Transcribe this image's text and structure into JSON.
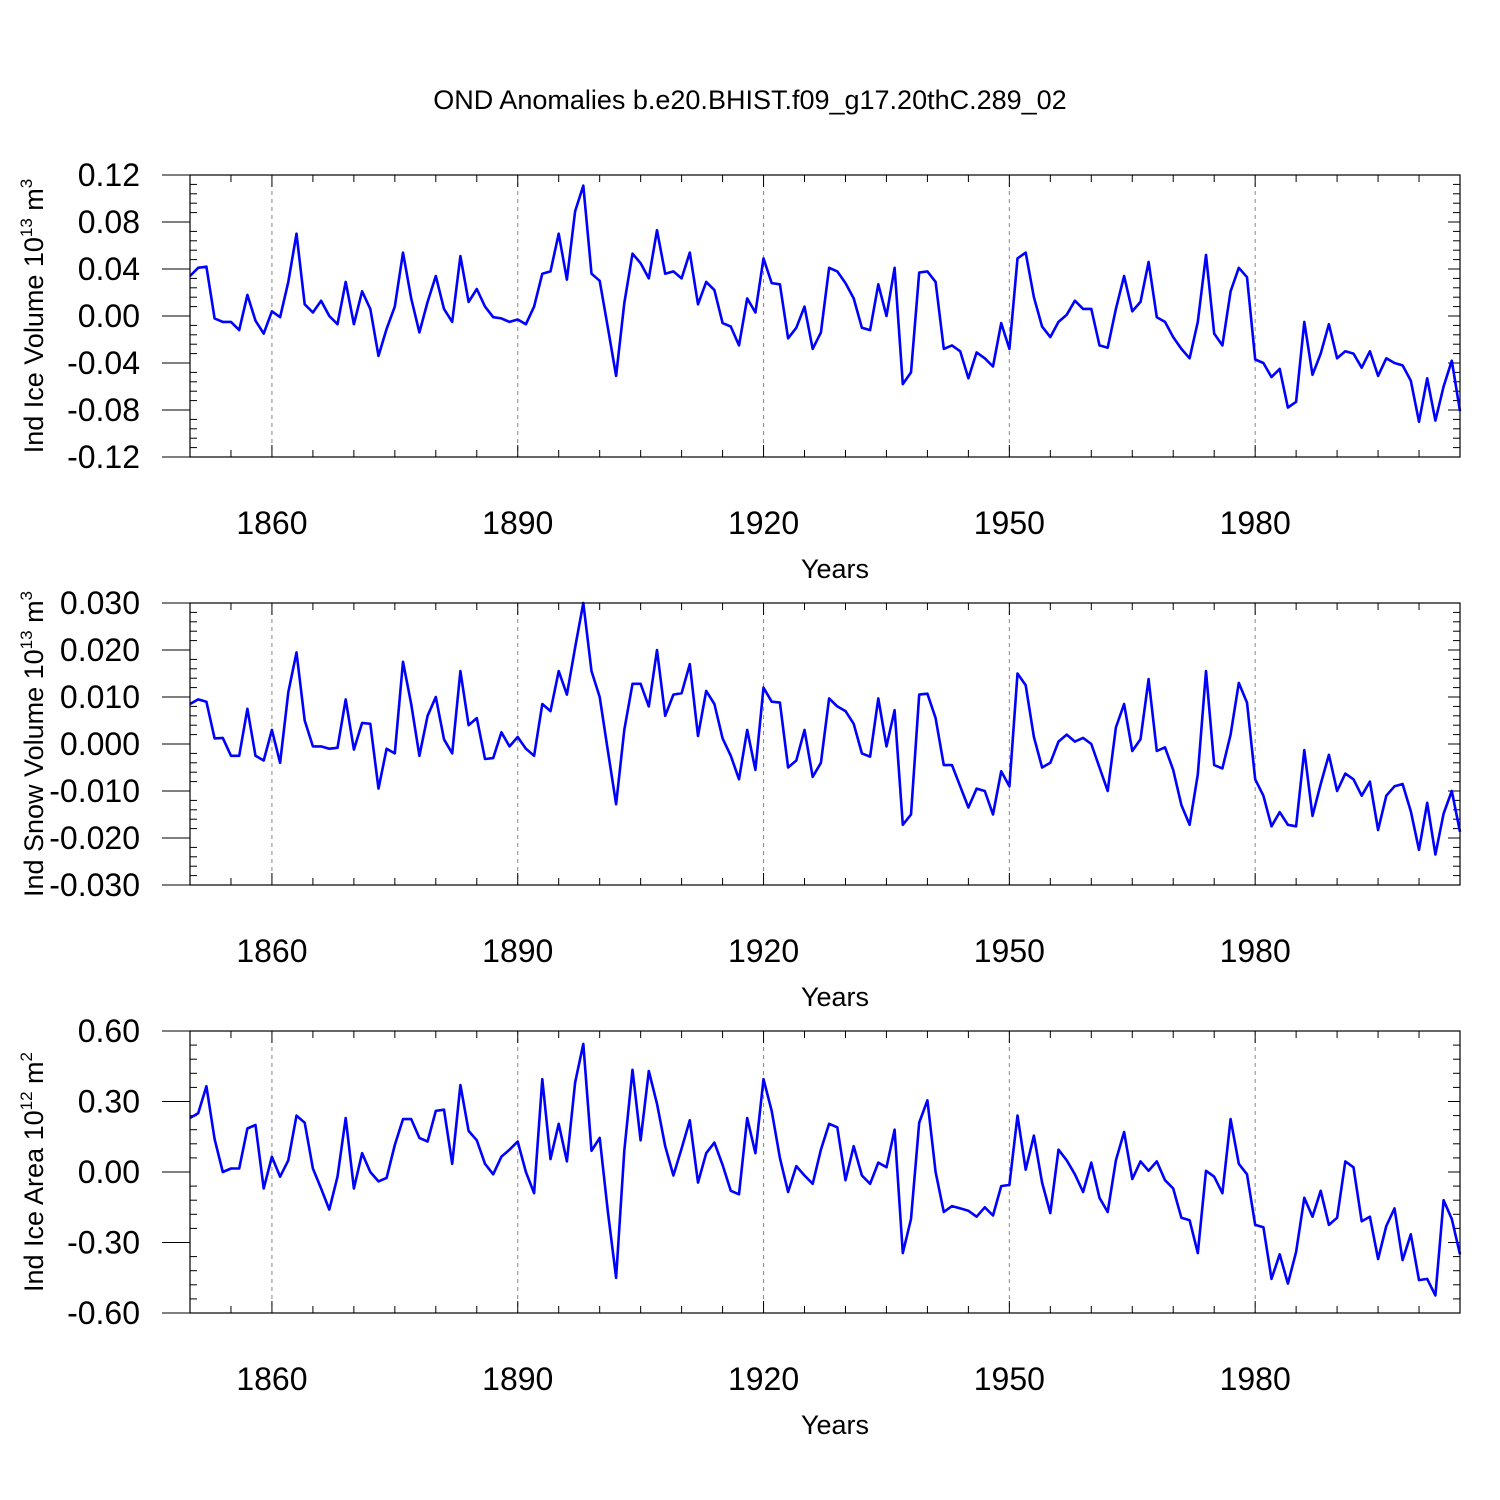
{
  "title": "OND Anomalies b.e20.BHIST.f09_g17.20thC.289_02",
  "colors": {
    "line": "#0000ff",
    "axis": "#000000",
    "grid": "#888888"
  },
  "chart_data": [
    {
      "type": "line",
      "ylabel": {
        "text": "Ind Ice Volume 10",
        "sup": "13",
        "unit": " m",
        "unit_sup": "3"
      },
      "xlabel": "Years",
      "xlim": [
        1850,
        2005
      ],
      "ylim": [
        -0.12,
        0.12
      ],
      "xticks": [
        1860,
        1890,
        1920,
        1950,
        1980
      ],
      "xtick_labels": [
        "1860",
        "1890",
        "1920",
        "1950",
        "1980"
      ],
      "yticks": [
        -0.12,
        -0.08,
        -0.04,
        0.0,
        0.04,
        0.08,
        0.12
      ],
      "ytick_labels": [
        "-0.12",
        "-0.08",
        "-0.04",
        "0.00",
        "0.04",
        "0.08",
        "0.12"
      ],
      "grid": "dashed vertical at major x ticks",
      "x_start": 1850,
      "series": [
        {
          "values": [
            0.034,
            0.041,
            0.042,
            -0.002,
            -0.005,
            -0.005,
            -0.012,
            0.018,
            -0.004,
            -0.015,
            0.004,
            -0.001,
            0.029,
            0.07,
            0.01,
            0.003,
            0.013,
            0.0,
            -0.007,
            0.029,
            -0.007,
            0.021,
            0.006,
            -0.034,
            -0.011,
            0.008,
            0.054,
            0.015,
            -0.014,
            0.012,
            0.034,
            0.006,
            -0.005,
            0.051,
            0.012,
            0.023,
            0.008,
            -0.001,
            -0.002,
            -0.005,
            -0.003,
            -0.007,
            0.008,
            0.036,
            0.038,
            0.07,
            0.031,
            0.089,
            0.111,
            0.036,
            0.03,
            -0.01,
            -0.051,
            0.011,
            0.053,
            0.045,
            0.032,
            0.073,
            0.036,
            0.038,
            0.032,
            0.054,
            0.01,
            0.029,
            0.022,
            -0.006,
            -0.009,
            -0.025,
            0.015,
            0.003,
            0.049,
            0.028,
            0.027,
            -0.019,
            -0.01,
            0.008,
            -0.028,
            -0.014,
            0.041,
            0.038,
            0.028,
            0.015,
            -0.01,
            -0.012,
            0.027,
            0.0,
            0.041,
            -0.058,
            -0.048,
            0.037,
            0.038,
            0.029,
            -0.028,
            -0.025,
            -0.03,
            -0.053,
            -0.031,
            -0.036,
            -0.043,
            -0.006,
            -0.028,
            0.049,
            0.054,
            0.016,
            -0.009,
            -0.018,
            -0.005,
            0.001,
            0.013,
            0.006,
            0.006,
            -0.025,
            -0.027,
            0.006,
            0.034,
            0.004,
            0.012,
            0.046,
            -0.001,
            -0.005,
            -0.018,
            -0.028,
            -0.036,
            -0.005,
            0.052,
            -0.015,
            -0.025,
            0.021,
            0.041,
            0.033,
            -0.037,
            -0.04,
            -0.052,
            -0.045,
            -0.078,
            -0.073,
            -0.005,
            -0.05,
            -0.032,
            -0.007,
            -0.036,
            -0.03,
            -0.032,
            -0.044,
            -0.03,
            -0.051,
            -0.036,
            -0.04,
            -0.042,
            -0.055,
            -0.09,
            -0.053,
            -0.089,
            -0.06,
            -0.038,
            -0.081
          ]
        }
      ]
    },
    {
      "type": "line",
      "ylabel": {
        "text": "Ind Snow Volume 10",
        "sup": "13",
        "unit": " m",
        "unit_sup": "3"
      },
      "xlabel": "Years",
      "xlim": [
        1850,
        2005
      ],
      "ylim": [
        -0.03,
        0.03
      ],
      "xticks": [
        1860,
        1890,
        1920,
        1950,
        1980
      ],
      "xtick_labels": [
        "1860",
        "1890",
        "1920",
        "1950",
        "1980"
      ],
      "yticks": [
        -0.03,
        -0.02,
        -0.01,
        0.0,
        0.01,
        0.02,
        0.03
      ],
      "ytick_labels": [
        "-0.030",
        "-0.020",
        "-0.010",
        "0.000",
        "0.010",
        "0.020",
        "0.030"
      ],
      "grid": "dashed vertical at major x ticks",
      "x_start": 1850,
      "series": [
        {
          "values": [
            0.0085,
            0.0095,
            0.009,
            0.0012,
            0.0013,
            -0.0025,
            -0.0025,
            0.0075,
            -0.0025,
            -0.0035,
            0.003,
            -0.004,
            0.011,
            0.0195,
            0.005,
            -0.0005,
            -0.0005,
            -0.001,
            -0.0008,
            0.0095,
            -0.0012,
            0.0045,
            0.0043,
            -0.0095,
            -0.001,
            -0.002,
            0.0175,
            0.0085,
            -0.0025,
            0.006,
            0.01,
            0.001,
            -0.002,
            0.0155,
            0.004,
            0.0055,
            -0.0032,
            -0.003,
            0.0025,
            -0.0005,
            0.0015,
            -0.001,
            -0.0025,
            0.0085,
            0.007,
            0.0155,
            0.0105,
            0.0205,
            0.03,
            0.0155,
            0.01,
            -0.0015,
            -0.0128,
            0.003,
            0.0128,
            0.0128,
            0.008,
            0.02,
            0.006,
            0.0105,
            0.0108,
            0.017,
            0.0017,
            0.0113,
            0.0085,
            0.0012,
            -0.0025,
            -0.0075,
            0.003,
            -0.0055,
            0.012,
            0.009,
            0.0088,
            -0.005,
            -0.0035,
            0.003,
            -0.007,
            -0.004,
            0.0097,
            0.008,
            0.007,
            0.0043,
            -0.002,
            -0.0027,
            0.0097,
            -0.0005,
            0.0072,
            -0.0172,
            -0.015,
            0.0105,
            0.0107,
            0.0055,
            -0.0045,
            -0.0045,
            -0.009,
            -0.0135,
            -0.0095,
            -0.01,
            -0.015,
            -0.0058,
            -0.009,
            0.015,
            0.0125,
            0.0015,
            -0.005,
            -0.004,
            0.0005,
            0.002,
            0.0005,
            0.0013,
            0.0,
            -0.005,
            -0.01,
            0.0035,
            0.0085,
            -0.0015,
            0.001,
            0.0138,
            -0.0015,
            -0.0007,
            -0.0055,
            -0.013,
            -0.0172,
            -0.0065,
            0.0155,
            -0.0045,
            -0.0052,
            0.002,
            0.013,
            0.0088,
            -0.0075,
            -0.011,
            -0.0175,
            -0.0145,
            -0.0172,
            -0.0175,
            -0.0013,
            -0.0153,
            -0.0085,
            -0.0023,
            -0.01,
            -0.0063,
            -0.0075,
            -0.011,
            -0.008,
            -0.0183,
            -0.011,
            -0.009,
            -0.0085,
            -0.0143,
            -0.0225,
            -0.0125,
            -0.0235,
            -0.0148,
            -0.01,
            -0.0187
          ]
        }
      ]
    },
    {
      "type": "line",
      "ylabel": {
        "text": "Ind Ice Area 10",
        "sup": "12",
        "unit": " m",
        "unit_sup": "2"
      },
      "xlabel": "Years",
      "xlim": [
        1850,
        2005
      ],
      "ylim": [
        -0.6,
        0.6
      ],
      "xticks": [
        1860,
        1890,
        1920,
        1950,
        1980
      ],
      "xtick_labels": [
        "1860",
        "1890",
        "1920",
        "1950",
        "1980"
      ],
      "yticks": [
        -0.6,
        -0.3,
        0.0,
        0.3,
        0.6
      ],
      "ytick_labels": [
        "-0.60",
        "-0.30",
        "0.00",
        "0.30",
        "0.60"
      ],
      "grid": "dashed vertical at major x ticks",
      "x_start": 1850,
      "series": [
        {
          "values": [
            0.23,
            0.25,
            0.365,
            0.14,
            0.0,
            0.015,
            0.015,
            0.185,
            0.2,
            -0.07,
            0.065,
            -0.02,
            0.05,
            0.24,
            0.21,
            0.015,
            -0.07,
            -0.16,
            -0.02,
            0.23,
            -0.07,
            0.08,
            0.0,
            -0.04,
            -0.025,
            0.115,
            0.225,
            0.225,
            0.145,
            0.13,
            0.26,
            0.265,
            0.035,
            0.37,
            0.175,
            0.135,
            0.035,
            -0.01,
            0.065,
            0.095,
            0.13,
            0.0,
            -0.09,
            0.395,
            0.055,
            0.205,
            0.045,
            0.38,
            0.545,
            0.09,
            0.145,
            -0.17,
            -0.45,
            0.09,
            0.435,
            0.135,
            0.43,
            0.29,
            0.11,
            -0.015,
            0.1,
            0.22,
            -0.045,
            0.08,
            0.125,
            0.03,
            -0.08,
            -0.095,
            0.23,
            0.08,
            0.395,
            0.26,
            0.06,
            -0.085,
            0.025,
            -0.015,
            -0.05,
            0.095,
            0.205,
            0.19,
            -0.035,
            0.11,
            -0.015,
            -0.05,
            0.04,
            0.02,
            0.18,
            -0.345,
            -0.2,
            0.21,
            0.305,
            0.0,
            -0.17,
            -0.145,
            -0.155,
            -0.165,
            -0.19,
            -0.15,
            -0.185,
            -0.06,
            -0.055,
            0.24,
            0.01,
            0.155,
            -0.045,
            -0.175,
            0.095,
            0.05,
            -0.01,
            -0.085,
            0.04,
            -0.11,
            -0.17,
            0.05,
            0.17,
            -0.03,
            0.045,
            0.005,
            0.045,
            -0.035,
            -0.07,
            -0.195,
            -0.205,
            -0.345,
            0.005,
            -0.02,
            -0.09,
            0.225,
            0.035,
            -0.01,
            -0.225,
            -0.235,
            -0.455,
            -0.35,
            -0.475,
            -0.34,
            -0.11,
            -0.19,
            -0.08,
            -0.225,
            -0.195,
            0.045,
            0.02,
            -0.21,
            -0.19,
            -0.37,
            -0.23,
            -0.155,
            -0.375,
            -0.265,
            -0.46,
            -0.455,
            -0.525,
            -0.12,
            -0.2,
            -0.35
          ]
        }
      ]
    }
  ]
}
